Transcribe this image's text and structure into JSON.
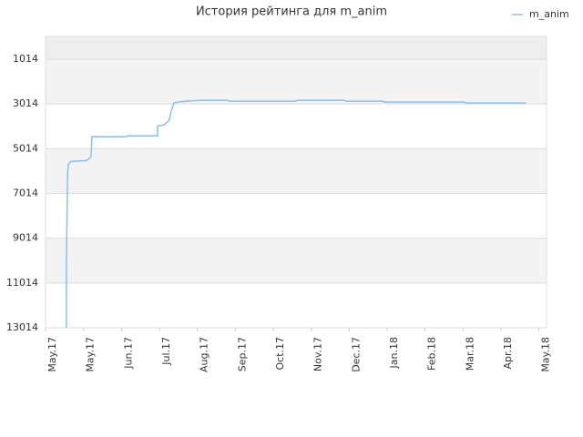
{
  "chart_data": {
    "type": "line",
    "title": "История рейтинга для m_anim",
    "xlim": [
      0,
      13.2
    ],
    "xticks": [
      {
        "value": 0,
        "label": "May.17"
      },
      {
        "value": 1,
        "label": "May.17"
      },
      {
        "value": 2,
        "label": "Jun.17"
      },
      {
        "value": 3,
        "label": "Jul.17"
      },
      {
        "value": 4,
        "label": "Aug.17"
      },
      {
        "value": 5,
        "label": "Sep.17"
      },
      {
        "value": 6,
        "label": "Oct.17"
      },
      {
        "value": 7,
        "label": "Nov.17"
      },
      {
        "value": 8,
        "label": "Dec.17"
      },
      {
        "value": 9,
        "label": "Jan.18"
      },
      {
        "value": 10,
        "label": "Feb.18"
      },
      {
        "value": 11,
        "label": "Mar.18"
      },
      {
        "value": 12,
        "label": "Apr.18"
      },
      {
        "value": 13,
        "label": "May.18"
      }
    ],
    "ylim": [
      0,
      13014
    ],
    "y_inverted": true,
    "yticks": [
      1014,
      3014,
      5014,
      7014,
      9014,
      11014,
      13014
    ],
    "grid": true,
    "legend": "top-right",
    "series": [
      {
        "name": "m_anim",
        "color": "#88c0ee",
        "x": [
          0.55,
          0.55,
          0.58,
          0.6,
          0.67,
          1.08,
          1.2,
          1.22,
          2.11,
          2.16,
          2.95,
          2.95,
          3.12,
          3.26,
          3.31,
          3.38,
          3.48,
          3.72,
          4.12,
          4.8,
          4.84,
          6.59,
          6.64,
          7.87,
          7.91,
          8.87,
          8.92,
          11.03,
          11.08,
          12.66
        ],
        "values": [
          13014,
          10198,
          6116,
          5708,
          5586,
          5545,
          5381,
          4483,
          4483,
          4443,
          4443,
          4000,
          3953,
          3749,
          3340,
          2973,
          2932,
          2891,
          2851,
          2851,
          2891,
          2891,
          2851,
          2851,
          2891,
          2891,
          2932,
          2932,
          2973,
          2973
        ]
      }
    ]
  }
}
